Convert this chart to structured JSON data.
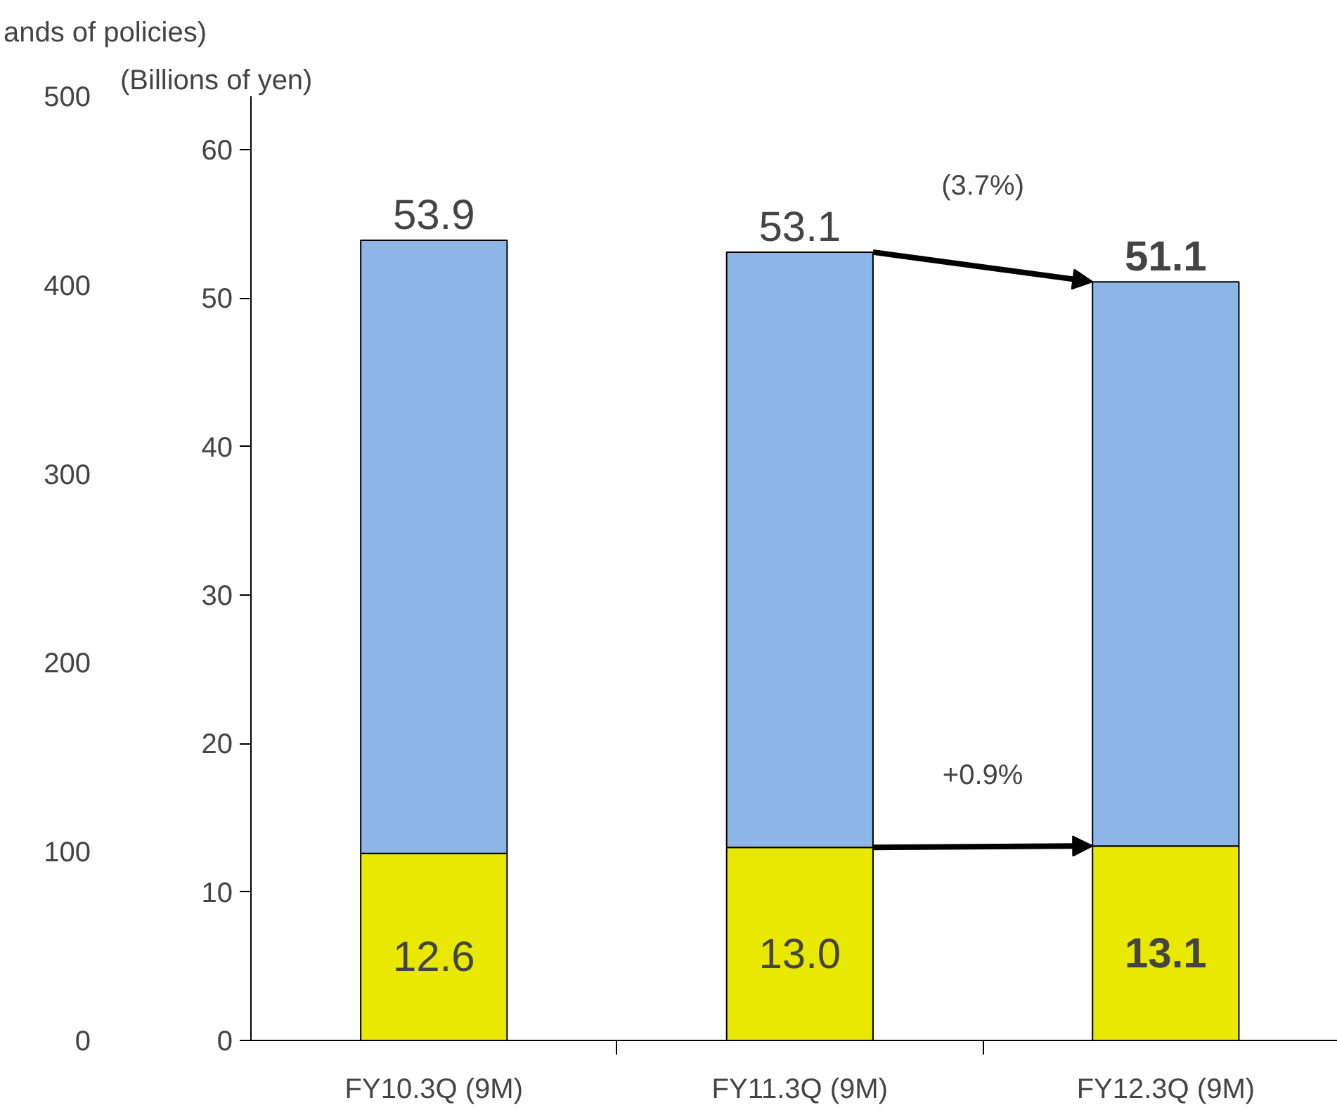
{
  "chart_data": {
    "type": "bar",
    "stacked": true,
    "categories": [
      "FY10.3Q (9M)",
      "FY11.3Q (9M)",
      "FY12.3Q (9M)"
    ],
    "series": [
      {
        "color": "#e8e800",
        "values": [
          12.6,
          13.0,
          13.1
        ],
        "value_labels": [
          "12.6",
          "13.0",
          "13.1"
        ]
      },
      {
        "color": "#8db6e6",
        "values": [
          41.3,
          40.1,
          38.0
        ]
      }
    ],
    "totals": [
      "53.9",
      "53.1",
      "51.1"
    ],
    "ylabel": "(Billions of yen)",
    "y2label": "ands of policies)",
    "ylim": [
      0,
      63.6
    ],
    "yticks": [
      0,
      10,
      20,
      30,
      40,
      50,
      60
    ],
    "y2lim": [
      0,
      500
    ],
    "y2ticks": [
      0,
      100,
      200,
      300,
      400,
      500
    ],
    "annotations": [
      "(3.7%)",
      "+0.9%"
    ],
    "grid": false
  }
}
